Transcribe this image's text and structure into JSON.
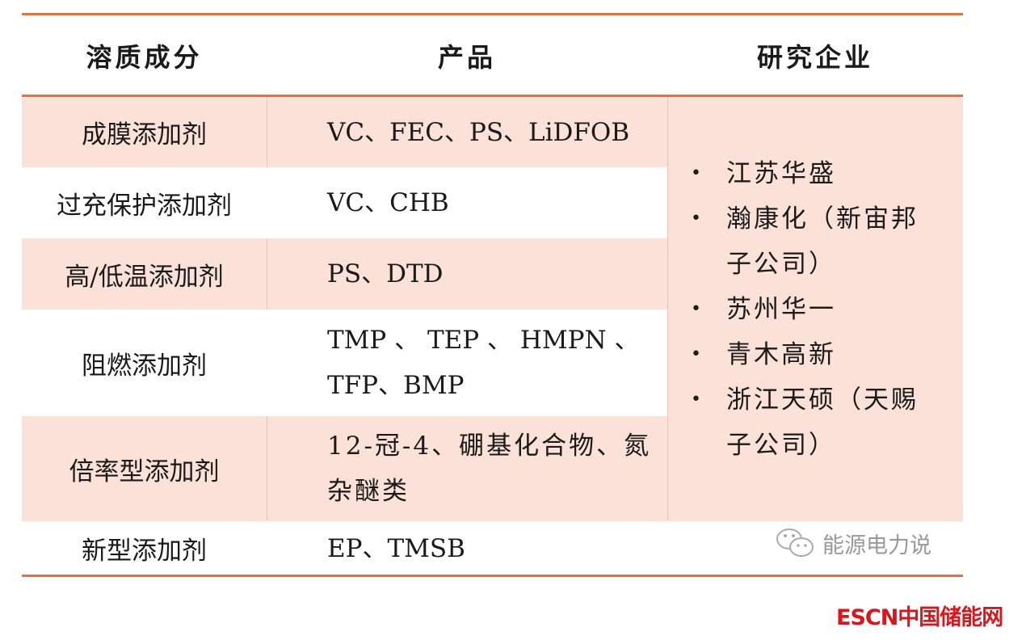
{
  "headers": [
    "溶质成分",
    "产品",
    "研究企业"
  ],
  "rows": [
    {
      "component": "成膜添加剂",
      "product": "VC、FEC、PS、LiDFOB"
    },
    {
      "component": "过充保护添加剂",
      "product": "VC、CHB"
    },
    {
      "component": "高/低温添加剂",
      "product": "PS、DTD"
    },
    {
      "component": "阻燃添加剂",
      "product": "TMP 、 TEP 、 HMPN 、 TFP、BMP"
    },
    {
      "component": "倍率型添加剂",
      "product": "12-冠-4、硼基化合物、氮杂醚类"
    },
    {
      "component": "新型添加剂",
      "product": "EP、TMSB"
    }
  ],
  "companies": [
    "江苏华盛",
    "瀚康化（新宙邦子公司）",
    "苏州华一",
    "青木高新",
    "浙江天硕（天赐子公司）"
  ],
  "watermark": {
    "icon": "wechat-icon",
    "text": "能源电力说"
  },
  "logo": {
    "text": "ESCN中国储能网"
  },
  "colors": {
    "rule": "#e8703a",
    "fill": "#fbe1d7",
    "logo": "#d8161b"
  }
}
